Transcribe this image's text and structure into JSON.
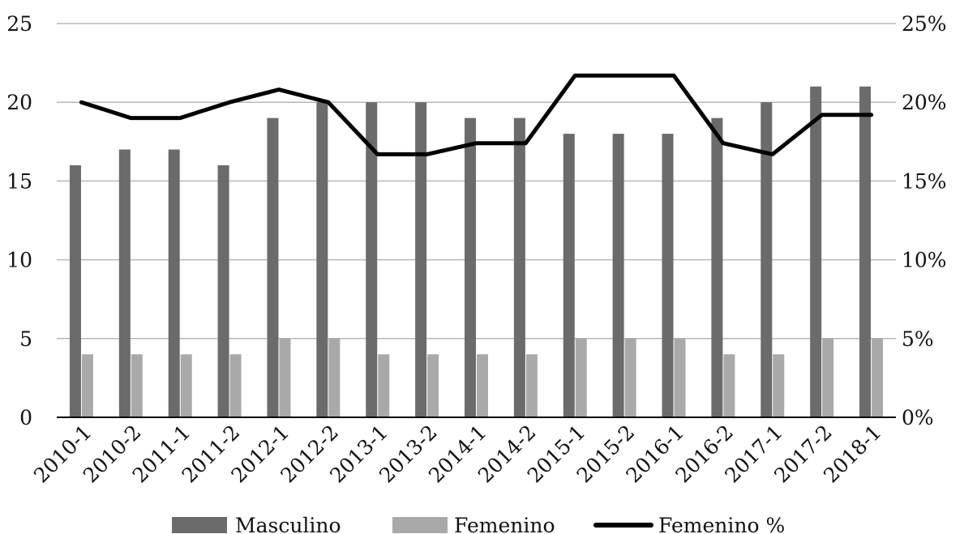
{
  "chart_data": {
    "type": "bar",
    "categories": [
      "2010-1",
      "2010-2",
      "2011-1",
      "2011-2",
      "2012-1",
      "2012-2",
      "2013-1",
      "2013-2",
      "2014-1",
      "2014-2",
      "2015-1",
      "2015-2",
      "2016-1",
      "2016-2",
      "2017-1",
      "2017-2",
      "2018-1"
    ],
    "series": [
      {
        "name": "Masculino",
        "type": "bar",
        "axis": "left",
        "color": "#6b6b6b",
        "values": [
          16,
          17,
          17,
          16,
          19,
          20,
          20,
          20,
          19,
          19,
          18,
          18,
          18,
          19,
          20,
          21,
          21
        ]
      },
      {
        "name": "Femenino",
        "type": "bar",
        "axis": "left",
        "color": "#a9a9a9",
        "values": [
          4,
          4,
          4,
          4,
          5,
          5,
          4,
          4,
          4,
          4,
          5,
          5,
          5,
          4,
          4,
          5,
          5
        ]
      },
      {
        "name": "Femenino %",
        "type": "line",
        "axis": "right",
        "color": "#000000",
        "values": [
          20.0,
          19.0,
          19.0,
          20.0,
          20.8,
          20.0,
          16.7,
          16.7,
          17.4,
          17.4,
          21.7,
          21.7,
          21.7,
          17.4,
          16.7,
          19.2,
          19.2
        ]
      }
    ],
    "y_left": {
      "ylim": [
        0,
        25
      ],
      "ticks": [
        "0",
        "5",
        "10",
        "15",
        "20",
        "25"
      ]
    },
    "y_right": {
      "ylim": [
        0,
        25
      ],
      "ticks": [
        "0%",
        "5%",
        "10%",
        "15%",
        "20%",
        "25%"
      ]
    },
    "title": "",
    "xlabel": "",
    "ylabel": "",
    "grid": true,
    "legend_position": "bottom"
  }
}
